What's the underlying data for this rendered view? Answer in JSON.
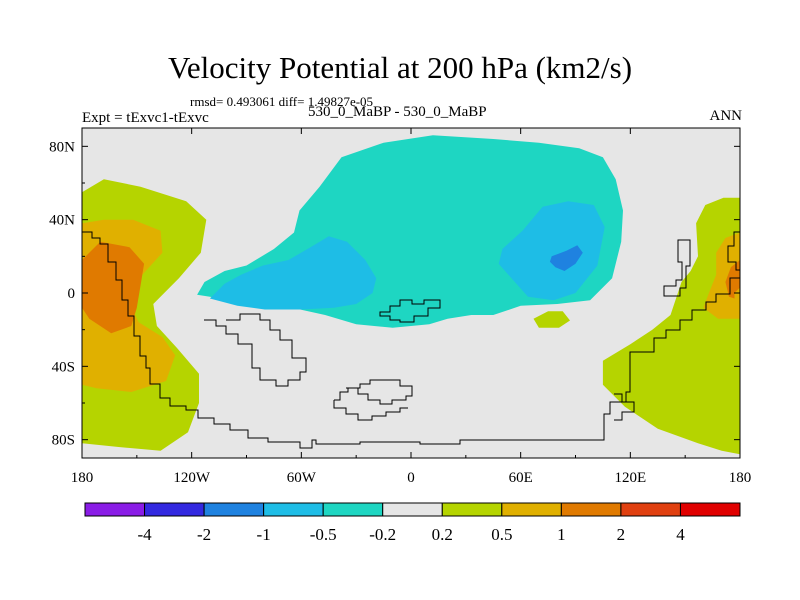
{
  "chart_data": {
    "type": "contour-map",
    "title": "Velocity Potential at 200 hPa (km2/s)",
    "stats_line": "rmsd= 0.493061  diff= 1.49827e-05",
    "experiment_label": "Expt = tExvc1-tExvc",
    "subtitle": "530_0_MaBP - 530_0_MaBP",
    "season": "ANN",
    "xlim": [
      180,
      540
    ],
    "ylim": [
      -90,
      90
    ],
    "x_ticks": [
      {
        "value": 180,
        "label": "180"
      },
      {
        "value": 240,
        "label": "120W"
      },
      {
        "value": 300,
        "label": "60W"
      },
      {
        "value": 360,
        "label": "0"
      },
      {
        "value": 420,
        "label": "60E"
      },
      {
        "value": 480,
        "label": "120E"
      },
      {
        "value": 540,
        "label": "180"
      }
    ],
    "y_ticks": [
      {
        "value": 80,
        "label": "80N"
      },
      {
        "value": 40,
        "label": "40N"
      },
      {
        "value": 0,
        "label": "0"
      },
      {
        "value": -40,
        "label": "40S"
      },
      {
        "value": -80,
        "label": "80S"
      }
    ],
    "colorbar": {
      "colors": [
        "#8a1ce6",
        "#3329e0",
        "#1f82e0",
        "#1ebde6",
        "#1ed6c2",
        "#e6e6e6",
        "#b5d400",
        "#e0b000",
        "#e07a00",
        "#e04010",
        "#e00000"
      ],
      "labels": [
        "-4",
        "-2",
        "-1",
        "-0.5",
        "-0.2",
        "0.2",
        "0.5",
        "1",
        "2",
        "4"
      ]
    },
    "background_color": "#e6e6e6",
    "regions": [
      {
        "level": "0.2 to 0.5",
        "color": "#b5d400",
        "polygon": [
          [
            180,
            55
          ],
          [
            192,
            62
          ],
          [
            212,
            58
          ],
          [
            237,
            50
          ],
          [
            248,
            40
          ],
          [
            245,
            22
          ],
          [
            233,
            8
          ],
          [
            219,
            -6
          ],
          [
            221,
            -18
          ],
          [
            232,
            -30
          ],
          [
            244,
            -44
          ],
          [
            244,
            -60
          ],
          [
            238,
            -76
          ],
          [
            223,
            -86
          ],
          [
            200,
            -84
          ],
          [
            180,
            -82
          ]
        ]
      },
      {
        "level": "0.5 to 1",
        "color": "#e0b000",
        "polygon": [
          [
            180,
            38
          ],
          [
            192,
            40
          ],
          [
            208,
            40
          ],
          [
            223,
            34
          ],
          [
            224,
            22
          ],
          [
            213,
            10
          ],
          [
            205,
            -4
          ],
          [
            211,
            -16
          ],
          [
            224,
            -24
          ],
          [
            231,
            -34
          ],
          [
            226,
            -48
          ],
          [
            207,
            -54
          ],
          [
            188,
            -52
          ],
          [
            180,
            -50
          ]
        ]
      },
      {
        "level": "1 to 2",
        "color": "#e07a00",
        "polygon": [
          [
            180,
            18
          ],
          [
            190,
            28
          ],
          [
            206,
            25
          ],
          [
            214,
            16
          ],
          [
            212,
            4
          ],
          [
            210,
            -8
          ],
          [
            207,
            -18
          ],
          [
            196,
            -22
          ],
          [
            184,
            -14
          ],
          [
            180,
            -8
          ]
        ]
      },
      {
        "level": "0.2 to 0.5",
        "color": "#b5d400",
        "polygon": [
          [
            540,
            52
          ],
          [
            531,
            52
          ],
          [
            521,
            48
          ],
          [
            516,
            38
          ],
          [
            517,
            20
          ],
          [
            513,
            12
          ],
          [
            508,
            6
          ],
          [
            502,
            -12
          ],
          [
            492,
            -20
          ],
          [
            480,
            -28
          ],
          [
            465,
            -37
          ],
          [
            465,
            -50
          ],
          [
            477,
            -62
          ],
          [
            495,
            -74
          ],
          [
            517,
            -82
          ],
          [
            530,
            -86
          ],
          [
            540,
            -88
          ]
        ]
      },
      {
        "level": "0.5 to 1",
        "color": "#e0b000",
        "polygon": [
          [
            540,
            33
          ],
          [
            532,
            30
          ],
          [
            527,
            22
          ],
          [
            527,
            10
          ],
          [
            523,
            0
          ],
          [
            520,
            -8
          ],
          [
            528,
            -14
          ],
          [
            540,
            -14
          ]
        ]
      },
      {
        "level": "1 to 2",
        "color": "#e07a00",
        "polygon": [
          [
            540,
            18
          ],
          [
            535,
            14
          ],
          [
            532,
            6
          ],
          [
            534,
            -2
          ],
          [
            540,
            -4
          ]
        ]
      },
      {
        "level": "0.5 to 1",
        "color": "#e0b000",
        "polygon": [
          [
            540,
            3
          ],
          [
            537,
            0
          ],
          [
            537,
            -4
          ],
          [
            540,
            -5
          ]
        ]
      },
      {
        "level": "0.2 to 0.5",
        "color": "#b5d400",
        "polygon": [
          [
            435,
            -10
          ],
          [
            443,
            -10
          ],
          [
            447,
            -15
          ],
          [
            441,
            -19
          ],
          [
            430,
            -19
          ],
          [
            427,
            -14
          ]
        ]
      },
      {
        "level": "-0.5 to -0.2",
        "color": "#1ed6c2",
        "polygon": [
          [
            299,
            45
          ],
          [
            310,
            58
          ],
          [
            322,
            74
          ],
          [
            345,
            82
          ],
          [
            372,
            86
          ],
          [
            405,
            84
          ],
          [
            430,
            82
          ],
          [
            452,
            79
          ],
          [
            465,
            74
          ],
          [
            472,
            62
          ],
          [
            476,
            45
          ],
          [
            475,
            28
          ],
          [
            470,
            8
          ],
          [
            458,
            -4
          ],
          [
            440,
            -6
          ],
          [
            420,
            -7
          ],
          [
            405,
            -12
          ],
          [
            393,
            -12
          ],
          [
            380,
            -14
          ],
          [
            370,
            -17
          ],
          [
            350,
            -19
          ],
          [
            330,
            -17
          ],
          [
            313,
            -12
          ],
          [
            295,
            -8
          ],
          [
            270,
            -5
          ],
          [
            250,
            -2
          ],
          [
            243,
            -1
          ],
          [
            247,
            6
          ],
          [
            258,
            12
          ],
          [
            270,
            15
          ],
          [
            285,
            24
          ],
          [
            296,
            33
          ]
        ]
      },
      {
        "level": "-1 to -0.5",
        "color": "#1ebde6",
        "polygon": [
          [
            250,
            -3
          ],
          [
            258,
            5
          ],
          [
            267,
            10
          ],
          [
            279,
            15
          ],
          [
            293,
            18
          ],
          [
            305,
            25
          ],
          [
            315,
            31
          ],
          [
            325,
            28
          ],
          [
            335,
            18
          ],
          [
            341,
            8
          ],
          [
            339,
            0
          ],
          [
            330,
            -6
          ],
          [
            318,
            -8
          ],
          [
            300,
            -9
          ],
          [
            280,
            -9
          ],
          [
            265,
            -7
          ]
        ]
      },
      {
        "level": "-1 to -0.5",
        "color": "#1ebde6",
        "polygon": [
          [
            410,
            24
          ],
          [
            421,
            34
          ],
          [
            432,
            47
          ],
          [
            446,
            50
          ],
          [
            460,
            48
          ],
          [
            466,
            36
          ],
          [
            462,
            15
          ],
          [
            450,
            0
          ],
          [
            438,
            -4
          ],
          [
            424,
            -2
          ],
          [
            415,
            8
          ],
          [
            408,
            16
          ]
        ]
      },
      {
        "level": "-2 to -1",
        "color": "#1f82e0",
        "polygon": [
          [
            437,
            20
          ],
          [
            445,
            23
          ],
          [
            451,
            26
          ],
          [
            454,
            22
          ],
          [
            450,
            16
          ],
          [
            444,
            12
          ],
          [
            439,
            14
          ],
          [
            436,
            17
          ]
        ]
      }
    ],
    "coastline_note": "530 Ma paleogeography outlines"
  }
}
